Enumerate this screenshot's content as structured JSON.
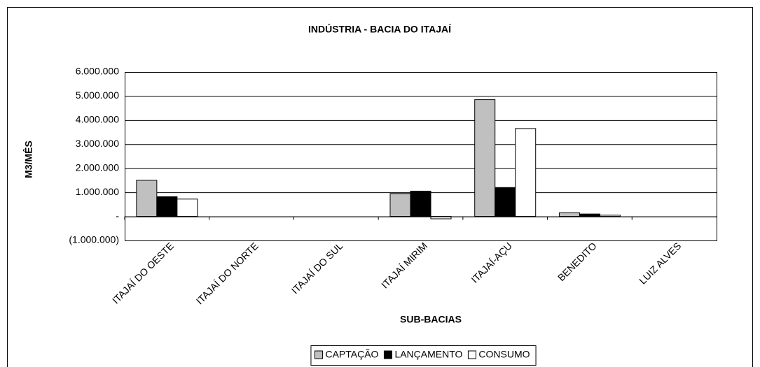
{
  "chart_data": {
    "type": "bar",
    "title": "INDÚSTRIA - BACIA DO ITAJAÍ",
    "x_label": "SUB-BACIAS",
    "y_label": "M3/MÊS",
    "categories": [
      "ITAJAÍ DO OESTE",
      "ITAJAÍ DO NORTE",
      "ITAJAÍ DO SUL",
      "ITAJAÍ MIRIM",
      "ITAJAÍ-AÇU",
      "BENEDITO",
      "LUIZ ALVES"
    ],
    "series": [
      {
        "name": "CAPTAÇÃO",
        "color": "#c0c0c0",
        "values": [
          1500000,
          0,
          0,
          950000,
          4850000,
          150000,
          0
        ]
      },
      {
        "name": "LANÇAMENTO",
        "color": "#000000",
        "values": [
          820000,
          0,
          0,
          1050000,
          1200000,
          100000,
          0
        ]
      },
      {
        "name": "CONSUMO",
        "color": "#ffffff",
        "values": [
          720000,
          0,
          0,
          -100000,
          3650000,
          50000,
          0
        ]
      }
    ],
    "ylim": [
      -1000000,
      6000000
    ],
    "yticks": [
      {
        "value": -1000000,
        "label": "(1.000.000)"
      },
      {
        "value": 0,
        "label": "-"
      },
      {
        "value": 1000000,
        "label": "1.000.000"
      },
      {
        "value": 2000000,
        "label": "2.000.000"
      },
      {
        "value": 3000000,
        "label": "3.000.000"
      },
      {
        "value": 4000000,
        "label": "4.000.000"
      },
      {
        "value": 5000000,
        "label": "5.000.000"
      },
      {
        "value": 6000000,
        "label": "6.000.000"
      }
    ],
    "grid": true,
    "legend": "bottom"
  }
}
